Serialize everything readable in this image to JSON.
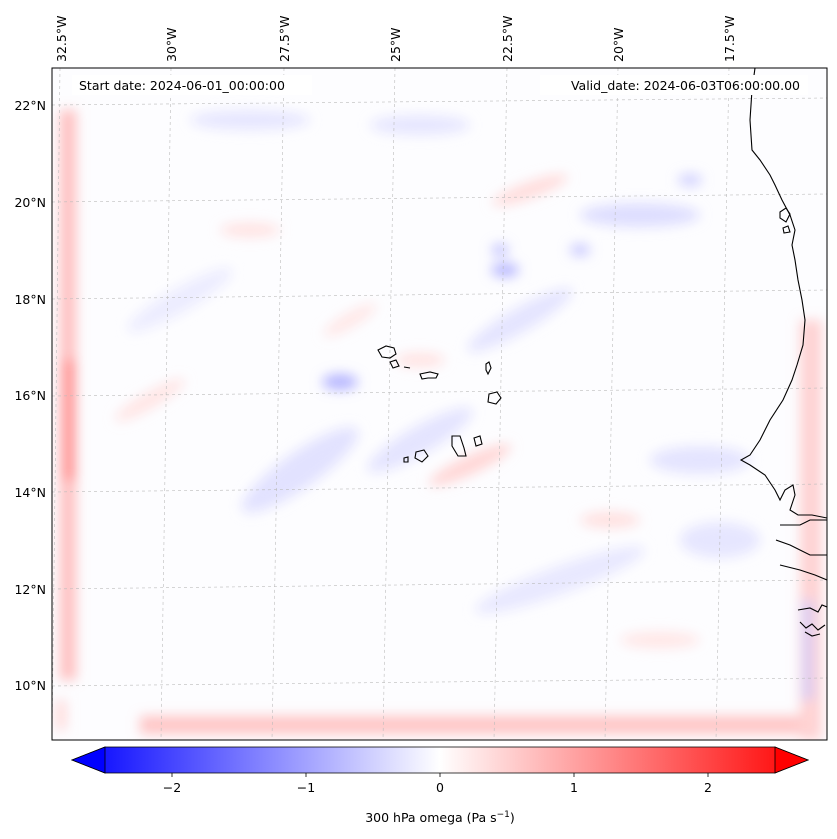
{
  "map": {
    "start_date": "Start date: 2024-06-01_00:00:00",
    "valid_date": "Valid_date: 2024-06-03T06:00:00.00",
    "lon_labels": [
      "32.5°W",
      "30°W",
      "27.5°W",
      "25°W",
      "22.5°W",
      "20°W",
      "17.5°W"
    ],
    "lat_labels": [
      "22°N",
      "20°N",
      "18°N",
      "16°N",
      "14°N",
      "12°N",
      "10°N"
    ],
    "colors": {
      "negative": "#0000ff",
      "zero": "#ffffff",
      "positive": "#ff0000",
      "coast": "#000000",
      "grid": "#bbbbbb"
    }
  },
  "colorbar": {
    "ticks": [
      "−2",
      "−1",
      "0",
      "1",
      "2"
    ],
    "label_main": "300 hPa omega (Pa s",
    "label_sup": "−1",
    "label_close": ")"
  }
}
